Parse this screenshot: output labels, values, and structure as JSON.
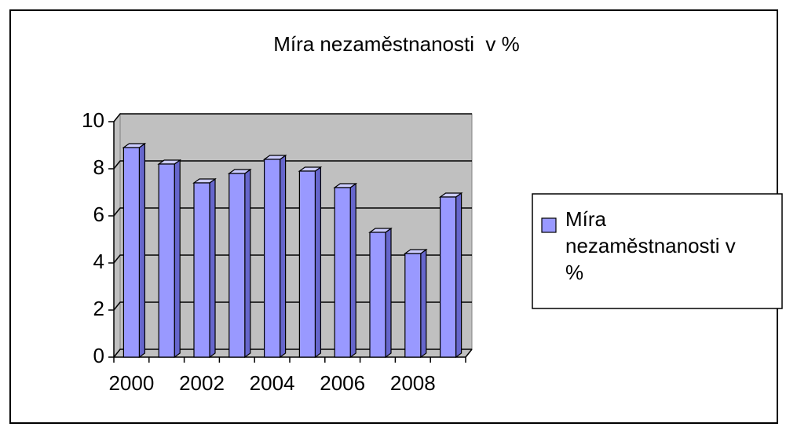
{
  "chart_data": {
    "type": "bar",
    "title": "Míra nezaměstnanosti  v %",
    "categories": [
      "2000",
      null,
      "2002",
      null,
      "2004",
      null,
      "2006",
      null,
      "2008",
      null
    ],
    "series": [
      {
        "name": "Míra nezaměstnanosti v %",
        "color": "#9999ff",
        "values": [
          8.9,
          8.2,
          7.4,
          7.8,
          8.4,
          7.9,
          7.2,
          5.3,
          4.4,
          6.8
        ]
      }
    ],
    "ylim": [
      0,
      10
    ],
    "yticks": [
      0,
      2,
      4,
      6,
      8,
      10
    ],
    "grid": true
  }
}
